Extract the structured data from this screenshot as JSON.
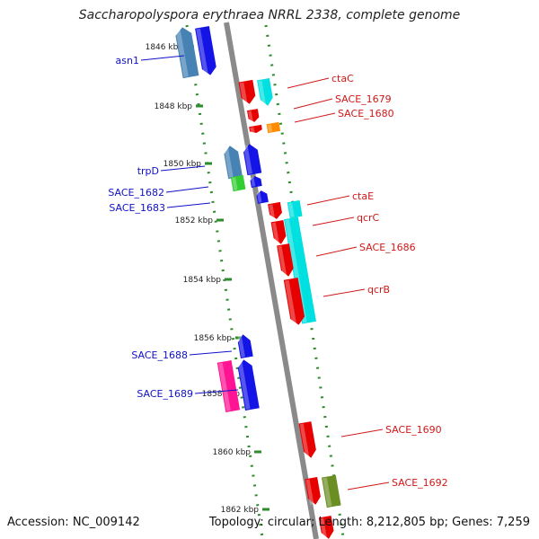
{
  "title": "Saccharopolyspora erythraea NRRL 2338, complete genome",
  "footer": {
    "accession": "Accession: NC_009142",
    "summary": "Topology: circular; Length: 8,212,805 bp; Genes: 7,259"
  },
  "scale_labels": [
    "1846 kbp",
    "1848 kbp",
    "1850 kbp",
    "1852 kbp",
    "1854 kbp",
    "1856 kbp",
    "1858 kbp",
    "1860 kbp",
    "1862 kbp"
  ],
  "colors": {
    "backbone": "#8a8a8a",
    "dots": "#2e8b2e",
    "blue_label": "#1010c8",
    "red_label": "#d01818"
  },
  "genes": [
    {
      "name": "asn1",
      "side": "left",
      "color": "#4682b4"
    },
    {
      "name": "asn1-b",
      "side": "left",
      "color": "#1414e6"
    },
    {
      "name": "ctaC",
      "side": "right",
      "color": "#e60000"
    },
    {
      "name": "ctaC-b",
      "side": "right",
      "color": "#00e0e0"
    },
    {
      "name": "SACE_1679",
      "side": "right",
      "color": "#e60000"
    },
    {
      "name": "SACE_1680",
      "side": "right",
      "color": "#e60000"
    },
    {
      "name": "SACE_1680-b",
      "side": "right",
      "color": "#ff8c00"
    },
    {
      "name": "trpD",
      "side": "left",
      "color": "#4682b4"
    },
    {
      "name": "trpD-b",
      "side": "left",
      "color": "#1414e6"
    },
    {
      "name": "SACE_1682",
      "side": "left",
      "color": "#32cd32"
    },
    {
      "name": "SACE_1682-b",
      "side": "left",
      "color": "#1414e6"
    },
    {
      "name": "SACE_1683",
      "side": "left",
      "color": "#1414e6"
    },
    {
      "name": "ctaE",
      "side": "right",
      "color": "#e60000"
    },
    {
      "name": "ctaE-b",
      "side": "right",
      "color": "#00e0e0"
    },
    {
      "name": "qcrC",
      "side": "right",
      "color": "#e60000"
    },
    {
      "name": "SACE_1686",
      "side": "right",
      "color": "#00e0e0"
    },
    {
      "name": "SACE_1686-b",
      "side": "right",
      "color": "#e60000"
    },
    {
      "name": "qcrB",
      "side": "right",
      "color": "#e60000"
    },
    {
      "name": "SACE_1688",
      "side": "left",
      "color": "#1414e6"
    },
    {
      "name": "SACE_1689",
      "side": "left",
      "color": "#ff1493"
    },
    {
      "name": "SACE_1689-b",
      "side": "left",
      "color": "#1414e6"
    },
    {
      "name": "SACE_1690",
      "side": "right",
      "color": "#e60000"
    },
    {
      "name": "SACE_1692",
      "side": "right",
      "color": "#e60000"
    },
    {
      "name": "SACE_1692-b",
      "side": "right",
      "color": "#6b8e23"
    },
    {
      "name": "bottom-gene",
      "side": "right",
      "color": "#e60000"
    }
  ],
  "labels": [
    {
      "text": "asn1",
      "side": "left"
    },
    {
      "text": "ctaC",
      "side": "right"
    },
    {
      "text": "SACE_1679",
      "side": "right"
    },
    {
      "text": "SACE_1680",
      "side": "right"
    },
    {
      "text": "trpD",
      "side": "left"
    },
    {
      "text": "SACE_1682",
      "side": "left"
    },
    {
      "text": "SACE_1683",
      "side": "left"
    },
    {
      "text": "ctaE",
      "side": "right"
    },
    {
      "text": "qcrC",
      "side": "right"
    },
    {
      "text": "SACE_1686",
      "side": "right"
    },
    {
      "text": "qcrB",
      "side": "right"
    },
    {
      "text": "SACE_1688",
      "side": "left"
    },
    {
      "text": "SACE_1689",
      "side": "left"
    },
    {
      "text": "SACE_1690",
      "side": "right"
    },
    {
      "text": "SACE_1692",
      "side": "right"
    }
  ]
}
